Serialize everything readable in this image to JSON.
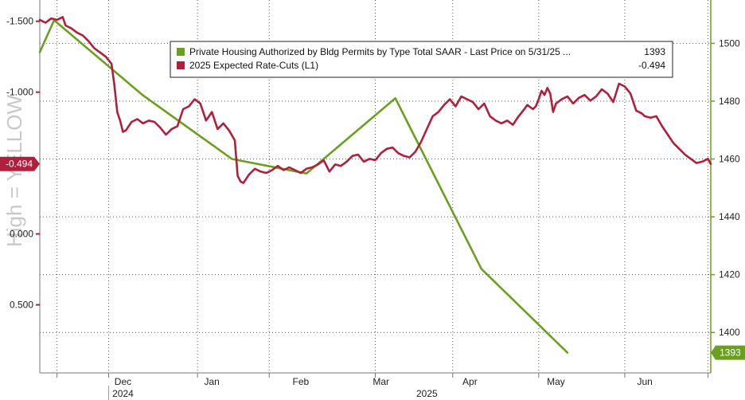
{
  "chart_data": {
    "type": "line",
    "watermark": "High = YELLOW",
    "x_ticks": [
      {
        "label": "Dec",
        "x": 40
      },
      {
        "label": "Jan",
        "x": 71
      },
      {
        "label": "Feb",
        "x": 102
      },
      {
        "label": "Mar",
        "x": 130
      },
      {
        "label": "Apr",
        "x": 161
      },
      {
        "label": "May",
        "x": 191
      },
      {
        "label": "Jun",
        "x": 222
      }
    ],
    "year_labels": [
      {
        "label": "2024",
        "x": 40
      },
      {
        "label": "2025",
        "x": 146
      }
    ],
    "left_axis": {
      "inverted": true,
      "range": [
        -1.65,
        0.98
      ],
      "ticks": [
        {
          "value": -1.5,
          "label": "-1.500"
        },
        {
          "value": -1.0,
          "label": "-1.000"
        },
        {
          "value": 0.0,
          "label": "0.000"
        },
        {
          "value": 0.5,
          "label": "0.500"
        }
      ]
    },
    "right_axis": {
      "range": [
        1386,
        1515
      ],
      "ticks": [
        {
          "value": 1500,
          "label": "1500"
        },
        {
          "value": 1480,
          "label": "1480"
        },
        {
          "value": 1460,
          "label": "1460"
        },
        {
          "value": 1440,
          "label": "1440"
        },
        {
          "value": 1420,
          "label": "1420"
        },
        {
          "value": 1400,
          "label": "1400"
        }
      ]
    },
    "x_range": [
      11,
      245
    ],
    "series": [
      {
        "name": "Private Housing Authorized by Bldg Permits by Type Total SAAR - Last Price on 5/31/25 ...",
        "last_value": "1393",
        "axis": "right",
        "color": "#6aa020",
        "x": [
          11,
          16,
          47,
          78,
          104,
          135,
          165,
          195
        ],
        "y": [
          1497,
          1508,
          1482,
          1460,
          1455,
          1481,
          1422,
          1393
        ]
      },
      {
        "name": "2025 Expected Rate-Cuts (L1)",
        "last_value": "-0.494",
        "axis": "left",
        "color": "#b0203c",
        "x": [
          11,
          13,
          15,
          17,
          19,
          20,
          22,
          24,
          26,
          28,
          30,
          32,
          34,
          36,
          37,
          38,
          39,
          40,
          41,
          43,
          45,
          47,
          49,
          51,
          53,
          55,
          57,
          59,
          61,
          63,
          65,
          67,
          69,
          71,
          73,
          75,
          77,
          79,
          80,
          81,
          82,
          84,
          86,
          88,
          90,
          92,
          94,
          96,
          98,
          100,
          102,
          104,
          106,
          108,
          110,
          112,
          114,
          116,
          118,
          120,
          122,
          124,
          126,
          128,
          130,
          132,
          134,
          136,
          138,
          140,
          142,
          144,
          146,
          148,
          150,
          152,
          154,
          156,
          158,
          160,
          162,
          164,
          166,
          168,
          170,
          172,
          174,
          176,
          178,
          180,
          181,
          183,
          184,
          185,
          186,
          187,
          188,
          189,
          190,
          191,
          193,
          195,
          197,
          199,
          201,
          203,
          205,
          207,
          209,
          211,
          213,
          215,
          217,
          219,
          221,
          222,
          224,
          226,
          228,
          230,
          232,
          234,
          236,
          238,
          240,
          242,
          244,
          245
        ],
        "y": [
          -1.51,
          -1.49,
          -1.52,
          -1.51,
          -1.53,
          -1.47,
          -1.45,
          -1.42,
          -1.4,
          -1.36,
          -1.31,
          -1.28,
          -1.25,
          -1.2,
          -1.05,
          -0.86,
          -0.8,
          -0.72,
          -0.73,
          -0.79,
          -0.81,
          -0.78,
          -0.8,
          -0.79,
          -0.75,
          -0.7,
          -0.74,
          -0.76,
          -0.88,
          -0.9,
          -0.95,
          -0.92,
          -0.8,
          -0.86,
          -0.74,
          -0.78,
          -0.73,
          -0.66,
          -0.41,
          -0.37,
          -0.36,
          -0.42,
          -0.46,
          -0.44,
          -0.43,
          -0.45,
          -0.48,
          -0.45,
          -0.47,
          -0.45,
          -0.43,
          -0.46,
          -0.47,
          -0.49,
          -0.52,
          -0.44,
          -0.49,
          -0.48,
          -0.51,
          -0.55,
          -0.56,
          -0.51,
          -0.53,
          -0.52,
          -0.57,
          -0.6,
          -0.61,
          -0.57,
          -0.55,
          -0.54,
          -0.58,
          -0.65,
          -0.74,
          -0.83,
          -0.86,
          -0.91,
          -0.95,
          -0.9,
          -0.97,
          -0.95,
          -0.93,
          -0.88,
          -0.92,
          -0.83,
          -0.8,
          -0.78,
          -0.8,
          -0.77,
          -0.83,
          -0.88,
          -0.91,
          -0.88,
          -0.9,
          -0.95,
          -1.01,
          -0.98,
          -1.03,
          -0.99,
          -0.86,
          -0.92,
          -0.95,
          -0.97,
          -0.92,
          -0.96,
          -0.98,
          -0.94,
          -0.97,
          -1.02,
          -0.99,
          -0.93,
          -1.06,
          -1.04,
          -0.99,
          -0.87,
          -0.85,
          -0.83,
          -0.82,
          -0.83,
          -0.76,
          -0.7,
          -0.64,
          -0.6,
          -0.56,
          -0.53,
          -0.5,
          -0.51,
          -0.53,
          -0.494
        ]
      }
    ]
  }
}
